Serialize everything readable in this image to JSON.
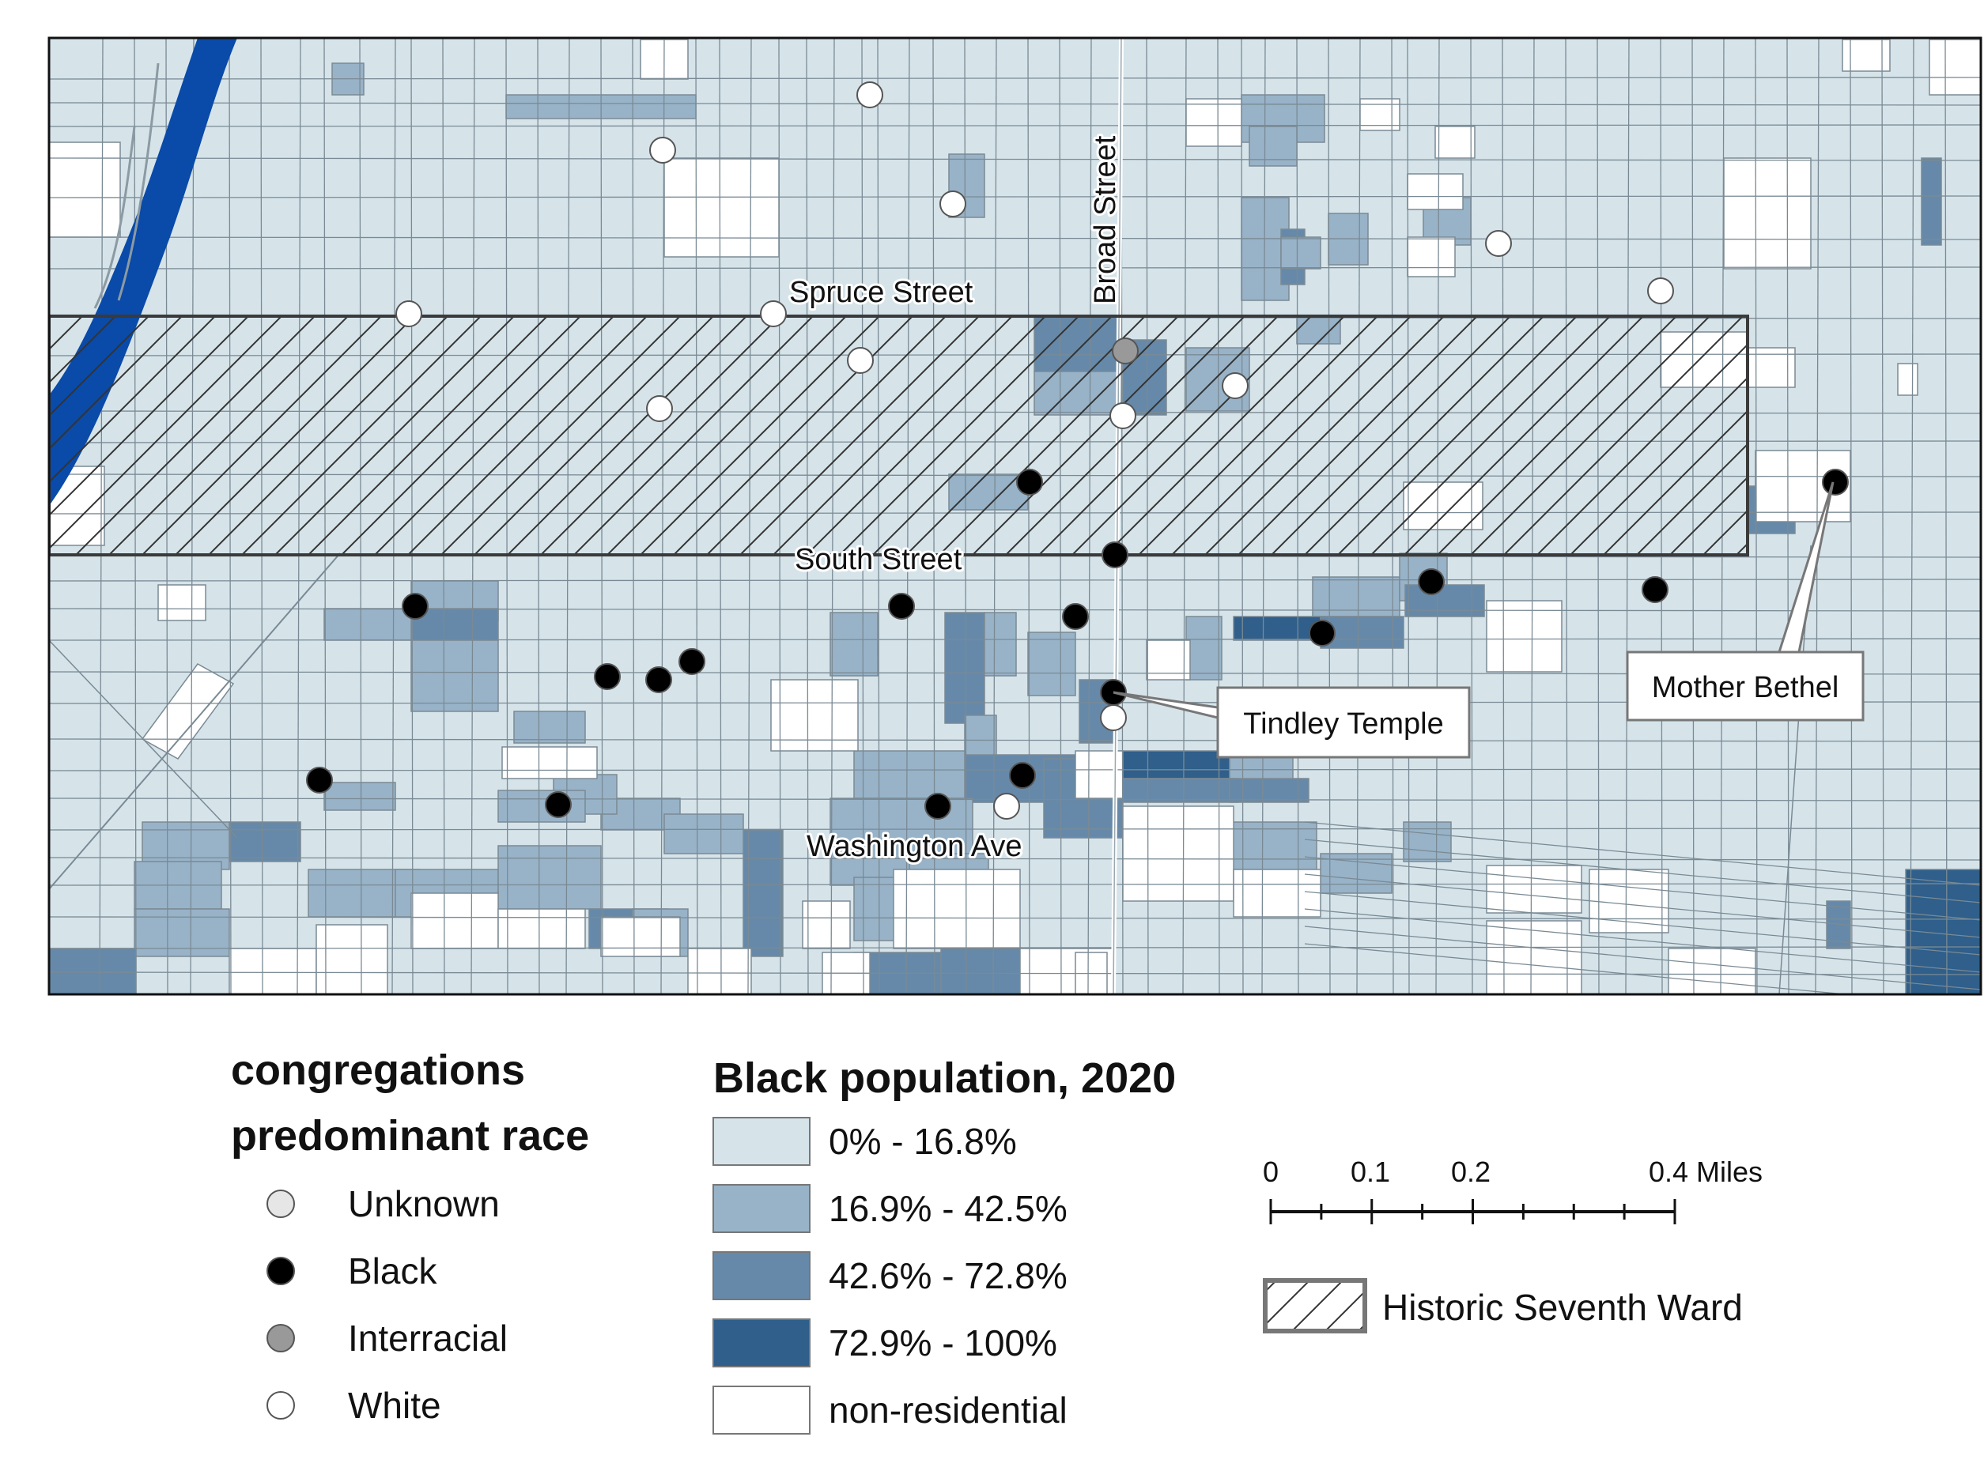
{
  "streets": {
    "spruce": "Spruce Street",
    "broad": "Broad Street",
    "south": "South Street",
    "washington": "Washington Ave"
  },
  "callouts": {
    "tindley": "Tindley Temple",
    "mother_bethel": "Mother Bethel"
  },
  "legend_congregations": {
    "title1": "congregations",
    "title2": "predominant race",
    "items": [
      {
        "label": "Unknown",
        "color": "#e6e6e6"
      },
      {
        "label": "Black",
        "color": "#000000"
      },
      {
        "label": "Interracial",
        "color": "#999999"
      },
      {
        "label": "White",
        "color": "#ffffff"
      }
    ]
  },
  "legend_population": {
    "title": "Black population, 2020",
    "classes": [
      {
        "label": "0% - 16.8%",
        "color": "#d6e4ea"
      },
      {
        "label": "16.9% - 42.5%",
        "color": "#98b3c8"
      },
      {
        "label": "42.6% - 72.8%",
        "color": "#6689a9"
      },
      {
        "label": "72.9% - 100%",
        "color": "#2f5f8a"
      },
      {
        "label": "non-residential",
        "color": "#ffffff"
      }
    ]
  },
  "scale_bar": {
    "ticks": [
      "0",
      "0.1",
      "0.2",
      "0.4 Miles"
    ]
  },
  "historic_ward": {
    "label": "Historic Seventh Ward"
  },
  "colors": {
    "river": "#0a4aa8",
    "block_outline": "#7a8a94",
    "ward_outline": "#3a3a3a"
  }
}
